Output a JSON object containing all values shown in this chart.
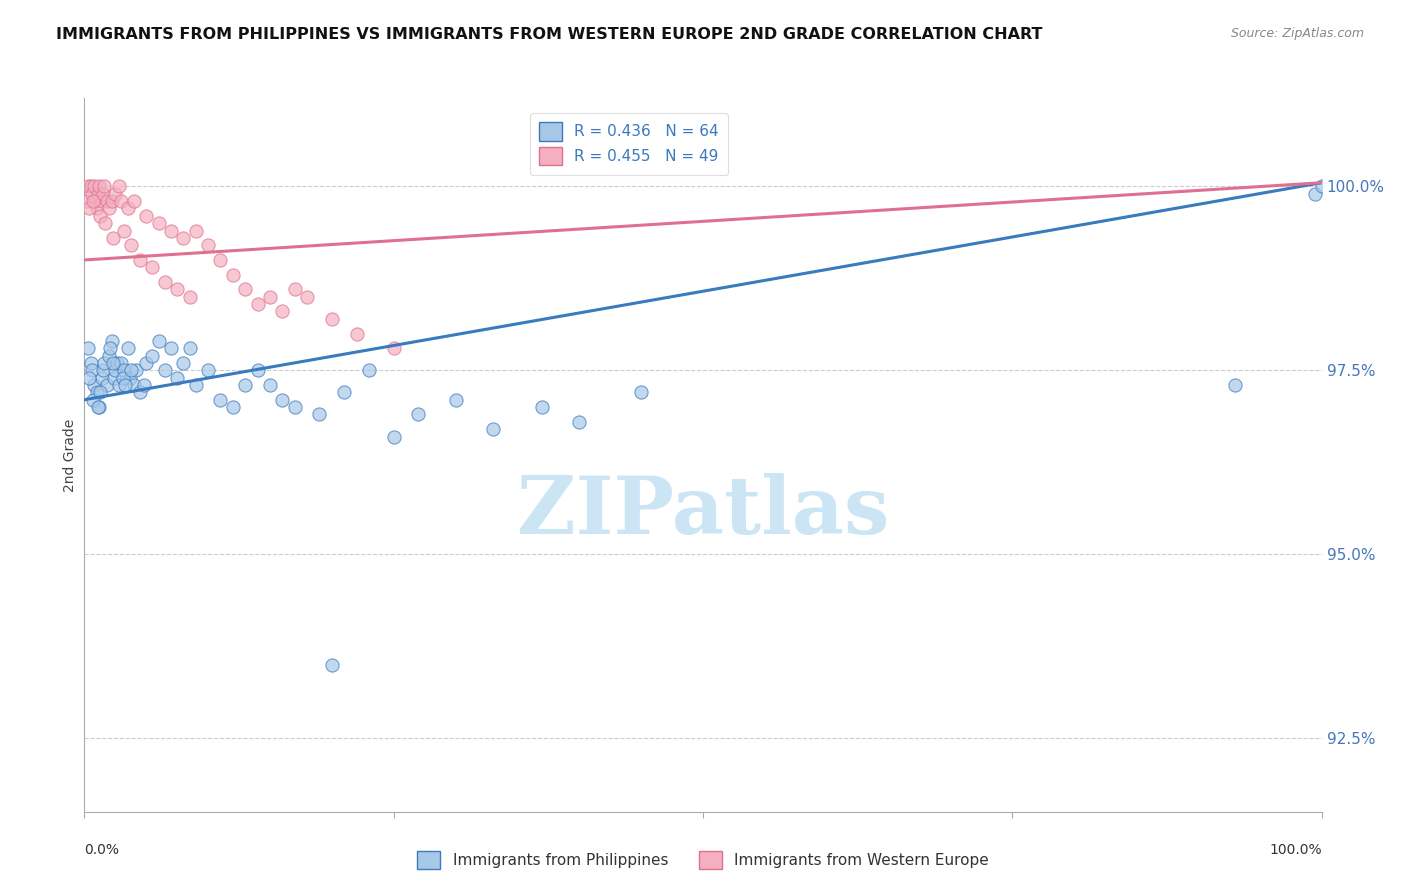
{
  "title": "IMMIGRANTS FROM PHILIPPINES VS IMMIGRANTS FROM WESTERN EUROPE 2ND GRADE CORRELATION CHART",
  "source_text": "Source: ZipAtlas.com",
  "ylabel": "2nd Grade",
  "ytick_values": [
    92.5,
    95.0,
    97.5,
    100.0
  ],
  "xlim": [
    0.0,
    100.0
  ],
  "ylim": [
    91.5,
    101.2
  ],
  "color_blue": "#a8c8e8",
  "color_pink": "#f4b0c0",
  "trendline_blue": "#3a7abf",
  "trendline_pink": "#e07090",
  "legend_R_blue": "R = 0.436",
  "legend_N_blue": "N = 64",
  "legend_R_pink": "R = 0.455",
  "legend_N_pink": "N = 49",
  "legend_label_blue": "Immigrants from Philippines",
  "legend_label_pink": "Immigrants from Western Europe",
  "watermark": "ZIPatlas",
  "watermark_color": "#cce5f5",
  "blue_x": [
    0.3,
    0.5,
    0.6,
    0.8,
    1.0,
    1.2,
    1.4,
    1.5,
    1.6,
    1.8,
    2.0,
    2.2,
    2.4,
    2.5,
    2.6,
    2.8,
    3.0,
    3.2,
    3.5,
    3.7,
    4.0,
    4.2,
    4.5,
    5.0,
    5.5,
    6.0,
    6.5,
    7.0,
    7.5,
    8.0,
    8.5,
    9.0,
    10.0,
    11.0,
    12.0,
    13.0,
    14.0,
    15.0,
    16.0,
    17.0,
    19.0,
    21.0,
    23.0,
    25.0,
    27.0,
    30.0,
    33.0,
    37.0,
    40.0,
    45.0,
    99.5,
    100.0,
    0.4,
    0.7,
    1.1,
    1.3,
    2.1,
    2.3,
    3.1,
    3.3,
    3.8,
    4.8,
    20.0,
    93.0
  ],
  "blue_y": [
    97.8,
    97.6,
    97.5,
    97.3,
    97.2,
    97.0,
    97.4,
    97.5,
    97.6,
    97.3,
    97.7,
    97.9,
    97.4,
    97.5,
    97.6,
    97.3,
    97.6,
    97.5,
    97.8,
    97.4,
    97.3,
    97.5,
    97.2,
    97.6,
    97.7,
    97.9,
    97.5,
    97.8,
    97.4,
    97.6,
    97.8,
    97.3,
    97.5,
    97.1,
    97.0,
    97.3,
    97.5,
    97.3,
    97.1,
    97.0,
    96.9,
    97.2,
    97.5,
    96.6,
    96.9,
    97.1,
    96.7,
    97.0,
    96.8,
    97.2,
    99.9,
    100.0,
    97.4,
    97.1,
    97.0,
    97.2,
    97.8,
    97.6,
    97.4,
    97.3,
    97.5,
    97.3,
    93.5,
    97.3
  ],
  "pink_x": [
    0.2,
    0.3,
    0.5,
    0.6,
    0.8,
    0.9,
    1.0,
    1.1,
    1.2,
    1.4,
    1.5,
    1.6,
    1.8,
    2.0,
    2.2,
    2.5,
    2.8,
    3.0,
    3.5,
    4.0,
    5.0,
    6.0,
    7.0,
    8.0,
    9.0,
    10.0,
    11.0,
    12.0,
    13.0,
    15.0,
    17.0,
    0.4,
    0.7,
    1.3,
    1.7,
    2.3,
    3.2,
    3.8,
    4.5,
    5.5,
    6.5,
    7.5,
    8.5,
    14.0,
    16.0,
    18.0,
    20.0,
    22.0,
    25.0
  ],
  "pink_y": [
    99.8,
    100.0,
    100.0,
    99.9,
    100.0,
    99.8,
    99.7,
    99.9,
    100.0,
    99.8,
    99.9,
    100.0,
    99.8,
    99.7,
    99.8,
    99.9,
    100.0,
    99.8,
    99.7,
    99.8,
    99.6,
    99.5,
    99.4,
    99.3,
    99.4,
    99.2,
    99.0,
    98.8,
    98.6,
    98.5,
    98.6,
    99.7,
    99.8,
    99.6,
    99.5,
    99.3,
    99.4,
    99.2,
    99.0,
    98.9,
    98.7,
    98.6,
    98.5,
    98.4,
    98.3,
    98.5,
    98.2,
    98.0,
    97.8
  ],
  "blue_trendline_x": [
    0.0,
    100.0
  ],
  "blue_trendline_y_start": 97.1,
  "blue_trendline_y_end": 100.05,
  "pink_trendline_x": [
    0.0,
    100.0
  ],
  "pink_trendline_y_start": 99.0,
  "pink_trendline_y_end": 100.05
}
